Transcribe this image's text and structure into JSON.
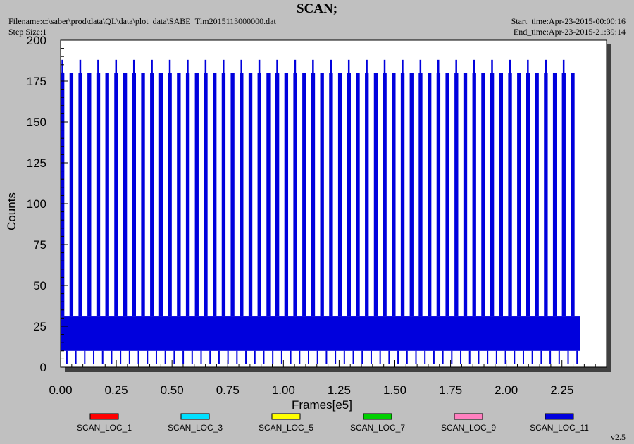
{
  "header": {
    "title": "SCAN;",
    "filename": "Filename:c:\\saber\\prod\\data\\QL\\data\\plot_data\\SABE_Tlm2015113000000.dat",
    "step_size": "Step Size:1",
    "start_time": "Start_time:Apr-23-2015-00:00:16",
    "end_time": "End_time:Apr-23-2015-21:39:14"
  },
  "version": "v2.5",
  "chart_data": {
    "type": "line",
    "title": "SCAN;",
    "xlabel": "Frames[e5]",
    "ylabel": "Counts",
    "xlim": [
      0,
      2.45
    ],
    "ylim": [
      0,
      200
    ],
    "x_ticks": [
      "0.00",
      "0.25",
      "0.50",
      "0.75",
      "1.00",
      "1.25",
      "1.50",
      "1.75",
      "2.00",
      "2.25"
    ],
    "y_ticks": [
      "0",
      "25",
      "50",
      "75",
      "100",
      "125",
      "150",
      "175",
      "200"
    ],
    "grid": false,
    "legend_position": "bottom",
    "series": [
      {
        "name": "SCAN_LOC_1",
        "color": "#ff0000",
        "values": []
      },
      {
        "name": "SCAN_LOC_3",
        "color": "#00e0ff",
        "values": []
      },
      {
        "name": "SCAN_LOC_5",
        "color": "#ffff00",
        "values": []
      },
      {
        "name": "SCAN_LOC_7",
        "color": "#00d000",
        "values": []
      },
      {
        "name": "SCAN_LOC_9",
        "color": "#ff80c0",
        "values": []
      },
      {
        "name": "SCAN_LOC_11",
        "color": "#0000dd",
        "x_range": [
          0.0,
          2.33
        ],
        "band_range": [
          10,
          31
        ],
        "peak_values": [
          180,
          188
        ],
        "trough_values": [
          2,
          10
        ],
        "cycle_count": 58
      }
    ]
  }
}
